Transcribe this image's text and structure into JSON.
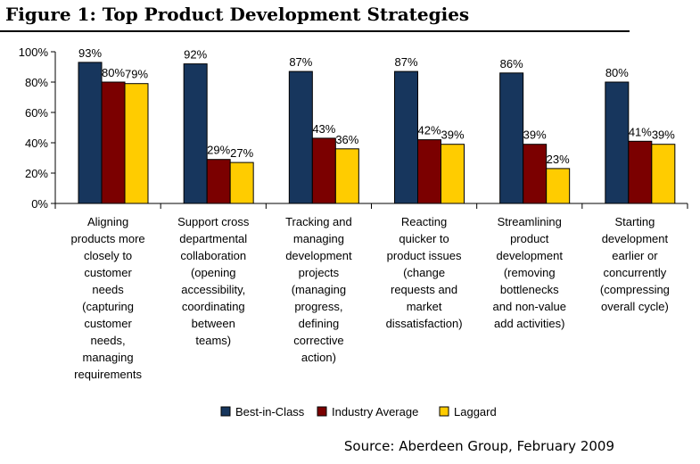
{
  "figure": {
    "title": "Figure 1: Top Product Development Strategies",
    "source": "Source: Aberdeen Group, February 2009"
  },
  "chart_data": {
    "type": "bar",
    "title": "",
    "xlabel": "",
    "ylabel": "",
    "ylim": [
      0,
      100
    ],
    "yticks": [
      "0%",
      "20%",
      "40%",
      "60%",
      "80%",
      "100%"
    ],
    "grid": false,
    "legend_position": "bottom",
    "categories": [
      [
        "Aligning",
        "products more",
        "closely to",
        "customer",
        "needs",
        "(capturing",
        "customer",
        "needs,",
        "managing",
        "requirements"
      ],
      [
        "Support cross",
        "departmental",
        "collaboration",
        "(opening",
        "accessibility,",
        "coordinating",
        "between",
        "teams)"
      ],
      [
        "Tracking and",
        "managing",
        "development",
        "projects",
        "(managing",
        "progress,",
        "defining",
        "corrective",
        "action)"
      ],
      [
        "Reacting",
        "quicker to",
        "product issues",
        "(change",
        "requests and",
        "market",
        "dissatisfaction)"
      ],
      [
        "Streamlining",
        "product",
        "development",
        "(removing",
        "bottlenecks",
        "and non-value",
        "add activities)"
      ],
      [
        "Starting",
        "development",
        "earlier or",
        "concurrently",
        "(compressing",
        "overall cycle)"
      ]
    ],
    "series": [
      {
        "name": "Best-in-Class",
        "color": "#17365d",
        "values": [
          93,
          92,
          87,
          87,
          86,
          80
        ],
        "labels": [
          "93%",
          "92%",
          "87%",
          "87%",
          "86%",
          "80%"
        ]
      },
      {
        "name": "Industry Average",
        "color": "#7b0000",
        "values": [
          80,
          29,
          43,
          42,
          39,
          41
        ],
        "labels": [
          "80%",
          "29%",
          "43%",
          "42%",
          "39%",
          "41%"
        ]
      },
      {
        "name": "Laggard",
        "color": "#ffcc00",
        "values": [
          79,
          27,
          36,
          39,
          23,
          39
        ],
        "labels": [
          "79%",
          "27%",
          "36%",
          "39%",
          "23%",
          "39%"
        ]
      }
    ]
  }
}
